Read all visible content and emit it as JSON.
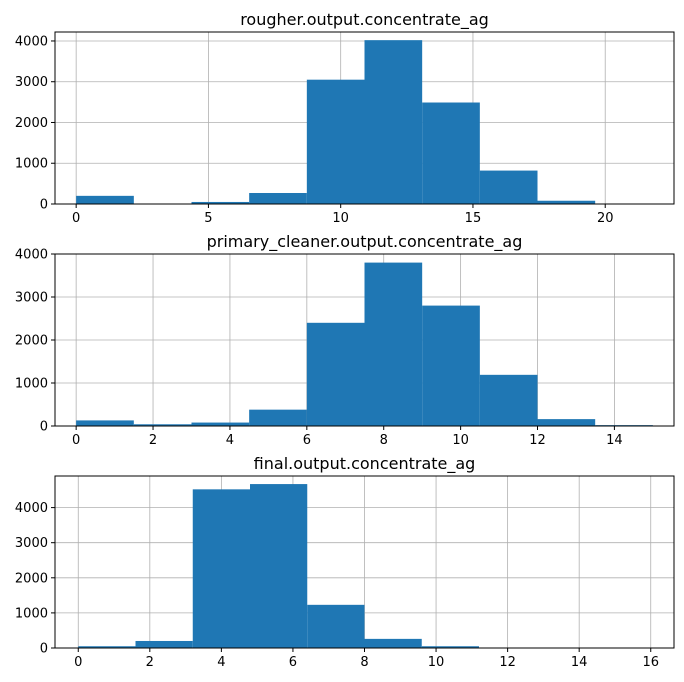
{
  "chart_data": [
    {
      "type": "bar",
      "title": "rougher.output.concentrate_ag",
      "xlabel": "",
      "ylabel": "",
      "bin_edges": [
        0,
        2.18,
        4.36,
        6.54,
        8.72,
        10.9,
        13.08,
        15.26,
        17.44,
        19.62,
        21.8
      ],
      "values": [
        200,
        0,
        50,
        270,
        3050,
        4020,
        2490,
        820,
        80,
        10
      ],
      "xlim": [
        -0.8,
        22.6
      ],
      "ylim": [
        0,
        4220
      ],
      "xticks": [
        0,
        5,
        10,
        15,
        20
      ],
      "xtick_labels": [
        "0",
        "5",
        "10",
        "15",
        "20"
      ],
      "yticks": [
        0,
        1000,
        2000,
        3000,
        4000
      ],
      "ytick_labels": [
        "0",
        "1000",
        "2000",
        "3000",
        "4000"
      ],
      "grid": true,
      "color": "#1f77b4"
    },
    {
      "type": "bar",
      "title": "primary_cleaner.output.concentrate_ag",
      "xlabel": "",
      "ylabel": "",
      "bin_edges": [
        0,
        1.5,
        3,
        4.5,
        6,
        7.5,
        9,
        10.5,
        12,
        13.5,
        15
      ],
      "values": [
        130,
        40,
        80,
        380,
        2400,
        3800,
        2800,
        1190,
        160,
        20
      ],
      "xlim": [
        -0.55,
        15.55
      ],
      "ylim": [
        0,
        4000
      ],
      "xticks": [
        0,
        2,
        4,
        6,
        8,
        10,
        12,
        14
      ],
      "xtick_labels": [
        "0",
        "2",
        "4",
        "6",
        "8",
        "10",
        "12",
        "14"
      ],
      "yticks": [
        0,
        1000,
        2000,
        3000,
        4000
      ],
      "ytick_labels": [
        "0",
        "1000",
        "2000",
        "3000",
        "4000"
      ],
      "grid": true,
      "color": "#1f77b4"
    },
    {
      "type": "bar",
      "title": "final.output.concentrate_ag",
      "xlabel": "",
      "ylabel": "",
      "bin_edges": [
        0,
        1.6,
        3.2,
        4.8,
        6.4,
        8.0,
        9.6,
        11.2,
        12.8,
        14.4,
        16.0
      ],
      "values": [
        50,
        200,
        4520,
        4670,
        1230,
        260,
        50,
        10,
        0,
        0
      ],
      "xlim": [
        -0.65,
        16.65
      ],
      "ylim": [
        0,
        4900
      ],
      "xticks": [
        0,
        2,
        4,
        6,
        8,
        10,
        12,
        14,
        16
      ],
      "xtick_labels": [
        "0",
        "2",
        "4",
        "6",
        "8",
        "10",
        "12",
        "14",
        "16"
      ],
      "yticks": [
        0,
        1000,
        2000,
        3000,
        4000
      ],
      "ytick_labels": [
        "0",
        "1000",
        "2000",
        "3000",
        "4000"
      ],
      "grid": true,
      "color": "#1f77b4"
    }
  ]
}
